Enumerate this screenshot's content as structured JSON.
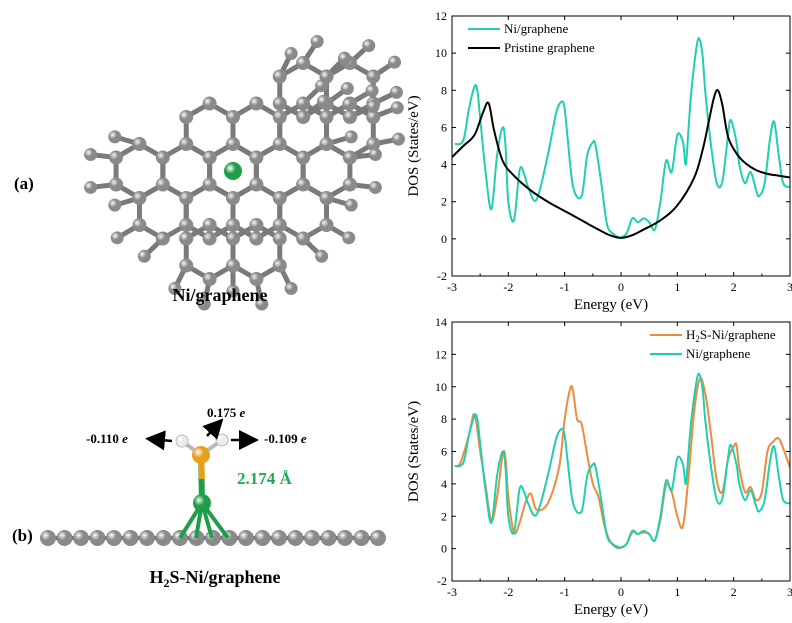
{
  "panels": {
    "a": {
      "label": "(a)",
      "caption": "Ni/graphene"
    },
    "b": {
      "label": "(b)",
      "caption_parts": [
        "H",
        "2",
        "S-Ni/graphene"
      ],
      "charges": {
        "s": [
          "0.175 ",
          "e"
        ],
        "h_left": [
          "-0.110 ",
          "e"
        ],
        "h_right": [
          "-0.109 ",
          "e"
        ]
      },
      "bond_length": "2.174 Å"
    }
  },
  "colors": {
    "carbon": "#8a8a8a",
    "nickel": "#1f9e4a",
    "sulfur": "#e6a11c",
    "hydrogen": "#ececec",
    "ni_graphene_line": "#1fcfb0",
    "pristine_line": "#000000",
    "h2s_line": "#f08a3c"
  },
  "chart_data": [
    {
      "type": "line",
      "xlabel": "Energy (eV)",
      "ylabel": "DOS (States/eV)",
      "xlim": [
        -3,
        3
      ],
      "ylim": [
        -2,
        12
      ],
      "xticks": [
        -3,
        -2,
        -1,
        0,
        1,
        2,
        3
      ],
      "yticks": [
        -2,
        0,
        2,
        4,
        6,
        8,
        10,
        12
      ],
      "legend": "top-left",
      "series": [
        {
          "name": "Ni/graphene",
          "color": "#1fcfb0",
          "x": [
            -2.95,
            -2.8,
            -2.7,
            -2.6,
            -2.55,
            -2.5,
            -2.4,
            -2.3,
            -2.2,
            -2.1,
            -2.05,
            -2.0,
            -1.9,
            -1.8,
            -1.72,
            -1.65,
            -1.5,
            -1.3,
            -1.15,
            -1.05,
            -1.0,
            -0.95,
            -0.85,
            -0.7,
            -0.6,
            -0.5,
            -0.45,
            -0.35,
            -0.25,
            -0.15,
            -0.05,
            0.0,
            0.1,
            0.2,
            0.3,
            0.4,
            0.5,
            0.6,
            0.7,
            0.8,
            0.9,
            1.0,
            1.1,
            1.15,
            1.2,
            1.25,
            1.35,
            1.4,
            1.45,
            1.5,
            1.6,
            1.7,
            1.8,
            1.9,
            1.95,
            2.05,
            2.1,
            2.2,
            2.3,
            2.4,
            2.45,
            2.55,
            2.65,
            2.72,
            2.8,
            2.88,
            3.0
          ],
          "y": [
            5.1,
            5.3,
            7.0,
            8.2,
            8.0,
            6.5,
            3.5,
            1.6,
            4.5,
            6.0,
            5.0,
            2.0,
            1.0,
            3.7,
            3.5,
            2.8,
            2.1,
            4.5,
            6.8,
            7.4,
            7.0,
            5.5,
            2.8,
            2.3,
            4.5,
            5.2,
            5.0,
            3.0,
            0.8,
            0.3,
            0.1,
            0.08,
            0.3,
            1.1,
            0.9,
            1.1,
            0.9,
            0.5,
            2.0,
            4.2,
            3.6,
            5.6,
            5.2,
            4.0,
            6.0,
            8.0,
            10.5,
            10.7,
            9.8,
            7.8,
            5.0,
            3.0,
            3.1,
            5.6,
            6.4,
            5.2,
            4.0,
            3.0,
            3.6,
            2.6,
            2.3,
            3.0,
            5.5,
            6.3,
            4.5,
            3.0,
            2.8
          ]
        },
        {
          "name": "Pristine graphene",
          "color": "#000000",
          "x": [
            -3.0,
            -2.8,
            -2.6,
            -2.45,
            -2.35,
            -2.25,
            -2.1,
            -1.9,
            -1.6,
            -1.3,
            -1.0,
            -0.7,
            -0.4,
            -0.2,
            0.0,
            0.2,
            0.4,
            0.7,
            1.0,
            1.3,
            1.45,
            1.55,
            1.65,
            1.72,
            1.8,
            1.9,
            2.05,
            2.2,
            2.4,
            2.6,
            2.8,
            3.0
          ],
          "y": [
            4.4,
            5.0,
            5.6,
            6.8,
            7.3,
            5.8,
            4.2,
            3.4,
            2.6,
            2.0,
            1.5,
            1.0,
            0.5,
            0.2,
            0.05,
            0.2,
            0.5,
            1.0,
            1.8,
            3.3,
            4.8,
            6.2,
            7.6,
            8.0,
            7.2,
            5.5,
            4.6,
            4.1,
            3.7,
            3.5,
            3.4,
            3.3
          ]
        }
      ]
    },
    {
      "type": "line",
      "xlabel": "Energy (eV)",
      "ylabel": "DOS (States/eV)",
      "xlim": [
        -3,
        3
      ],
      "ylim": [
        -2,
        14
      ],
      "xticks": [
        -3,
        -2,
        -1,
        0,
        1,
        2,
        3
      ],
      "yticks": [
        -2,
        0,
        2,
        4,
        6,
        8,
        10,
        12,
        14
      ],
      "legend": "top-right",
      "series": [
        {
          "name_parts": [
            "H",
            "2",
            "S-Ni/graphene"
          ],
          "color": "#f08a3c",
          "x": [
            -2.95,
            -2.85,
            -2.7,
            -2.6,
            -2.5,
            -2.4,
            -2.3,
            -2.2,
            -2.1,
            -2.05,
            -2.0,
            -1.9,
            -1.8,
            -1.7,
            -1.6,
            -1.5,
            -1.3,
            -1.1,
            -1.0,
            -0.9,
            -0.85,
            -0.78,
            -0.7,
            -0.6,
            -0.5,
            -0.4,
            -0.3,
            -0.2,
            -0.1,
            0.0,
            0.1,
            0.2,
            0.3,
            0.4,
            0.5,
            0.6,
            0.7,
            0.8,
            0.9,
            1.0,
            1.1,
            1.2,
            1.3,
            1.4,
            1.5,
            1.6,
            1.7,
            1.8,
            1.9,
            2.0,
            2.05,
            2.1,
            2.2,
            2.3,
            2.4,
            2.5,
            2.6,
            2.7,
            2.8,
            2.9,
            3.0
          ],
          "y": [
            5.1,
            5.3,
            7.0,
            8.3,
            6.0,
            3.8,
            1.7,
            3.2,
            5.8,
            5.6,
            3.2,
            1.0,
            1.6,
            2.8,
            3.4,
            2.4,
            2.8,
            5.0,
            8.0,
            9.9,
            9.7,
            8.0,
            7.7,
            5.8,
            4.0,
            3.2,
            1.5,
            0.5,
            0.1,
            0.05,
            0.3,
            1.0,
            0.9,
            1.0,
            0.9,
            0.5,
            1.8,
            3.9,
            3.5,
            2.0,
            1.4,
            4.5,
            8.5,
            10.5,
            9.5,
            7.0,
            4.2,
            3.5,
            5.5,
            6.3,
            6.4,
            5.0,
            3.5,
            3.8,
            3.0,
            3.5,
            6.0,
            6.6,
            6.8,
            6.0,
            5.0
          ]
        },
        {
          "name": "Ni/graphene",
          "color": "#1fcfb0",
          "x": [
            -2.95,
            -2.8,
            -2.7,
            -2.6,
            -2.55,
            -2.5,
            -2.4,
            -2.3,
            -2.2,
            -2.1,
            -2.05,
            -2.0,
            -1.9,
            -1.8,
            -1.72,
            -1.65,
            -1.5,
            -1.3,
            -1.15,
            -1.05,
            -1.0,
            -0.95,
            -0.85,
            -0.7,
            -0.6,
            -0.5,
            -0.45,
            -0.35,
            -0.25,
            -0.15,
            -0.05,
            0.0,
            0.1,
            0.2,
            0.3,
            0.4,
            0.5,
            0.6,
            0.7,
            0.8,
            0.9,
            1.0,
            1.1,
            1.15,
            1.2,
            1.25,
            1.35,
            1.4,
            1.45,
            1.5,
            1.6,
            1.7,
            1.8,
            1.9,
            1.95,
            2.05,
            2.1,
            2.2,
            2.3,
            2.4,
            2.45,
            2.55,
            2.65,
            2.72,
            2.8,
            2.88,
            3.0
          ],
          "y": [
            5.1,
            5.3,
            7.0,
            8.2,
            8.0,
            6.5,
            3.5,
            1.6,
            4.5,
            6.0,
            5.0,
            2.0,
            1.0,
            3.7,
            3.5,
            2.8,
            2.1,
            4.5,
            6.8,
            7.4,
            7.0,
            5.5,
            2.8,
            2.3,
            4.5,
            5.2,
            5.0,
            3.0,
            0.8,
            0.3,
            0.1,
            0.08,
            0.3,
            1.1,
            0.9,
            1.1,
            0.9,
            0.5,
            2.0,
            4.2,
            3.6,
            5.6,
            5.2,
            4.0,
            6.0,
            8.0,
            10.5,
            10.7,
            9.8,
            7.8,
            5.0,
            3.0,
            3.1,
            5.6,
            6.4,
            5.2,
            4.0,
            3.0,
            3.6,
            2.6,
            2.3,
            3.0,
            5.5,
            6.3,
            4.5,
            3.0,
            2.8
          ]
        }
      ]
    }
  ]
}
